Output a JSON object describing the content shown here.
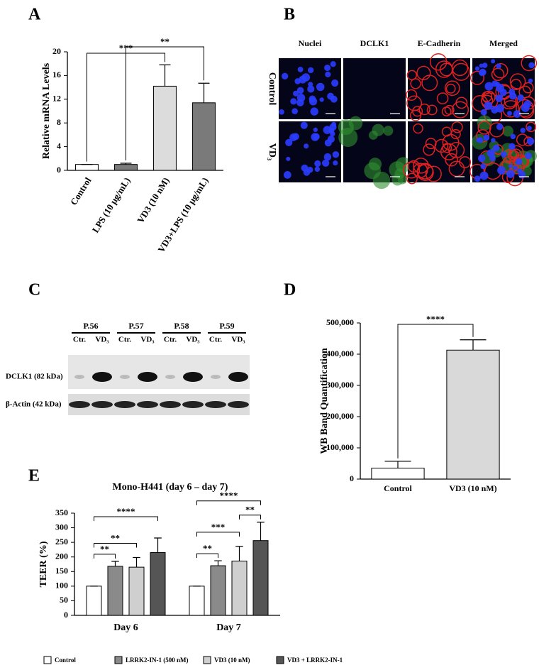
{
  "panel_labels": [
    "A",
    "B",
    "C",
    "D",
    "E"
  ],
  "microscopy": {
    "columns": [
      "Nuclei",
      "DCLK1",
      "E-Cadherin",
      "Merged"
    ],
    "rows": [
      "Control",
      "VD₃"
    ]
  },
  "blot": {
    "passages": [
      "P.56",
      "P.57",
      "P.58",
      "P.59"
    ],
    "lanes": [
      "Ctr.",
      "VD₃"
    ],
    "bands": [
      "DCLK1 (82 kDa)",
      "β-Actin (42 kDa)"
    ]
  },
  "chart_data": [
    {
      "type": "bar",
      "ylabel": "Relative mRNA Levels",
      "categories": [
        "Control",
        "LPS (10 μg/mL)",
        "VD3 (10 nM)",
        "VD3+LPS (10 μg/mL)"
      ],
      "values": [
        1,
        1,
        14.2,
        11.4
      ],
      "errors": [
        0,
        0.2,
        3.6,
        3.3
      ],
      "colors": [
        "#ffffff",
        "#7a7a7a",
        "#dcdcdc",
        "#7a7a7a"
      ],
      "ylim": [
        0,
        20
      ],
      "yticks": [
        0,
        4,
        8,
        12,
        16,
        20
      ],
      "significance": [
        {
          "from": 0,
          "to": 2,
          "label": "***"
        },
        {
          "from": 1,
          "to": 3,
          "label": "**"
        }
      ]
    },
    {
      "type": "bar",
      "ylabel": "WB Band Quantification",
      "categories": [
        "Control",
        "VD3 (10 nM)"
      ],
      "values": [
        35000,
        413000
      ],
      "errors": [
        22000,
        33000
      ],
      "colors": [
        "#ffffff",
        "#d9d9d9"
      ],
      "ylim": [
        0,
        500000
      ],
      "yticks": [
        0,
        {
          "value": 100000,
          "label": "100,000"
        },
        {
          "value": 200000,
          "label": "200,000"
        },
        {
          "value": 300000,
          "label": "300,000"
        },
        {
          "value": 400000,
          "label": "400,000"
        },
        {
          "value": 500000,
          "label": "500,000"
        }
      ],
      "significance": [
        {
          "from": 0,
          "to": 1,
          "label": "****"
        }
      ]
    },
    {
      "type": "grouped-bar",
      "title": "Mono-H441 (day 6 – day 7)",
      "ylabel": "TEER (%)",
      "categories": [
        "Day 6",
        "Day 7"
      ],
      "series": [
        {
          "name": "Control",
          "color": "#ffffff",
          "values": [
            100,
            100
          ],
          "errors": [
            0,
            0
          ]
        },
        {
          "name": "LRRK2-IN-1 (500 nM)",
          "color": "#8a8a8a",
          "values": [
            168,
            170
          ],
          "errors": [
            17,
            17
          ]
        },
        {
          "name": "VD3 (10 nM)",
          "color": "#cfcfcf",
          "values": [
            165,
            186
          ],
          "errors": [
            33,
            50
          ]
        },
        {
          "name": "VD3 + LRRK2-IN-1",
          "color": "#555555",
          "values": [
            215,
            256
          ],
          "errors": [
            50,
            63
          ]
        }
      ],
      "ylim": [
        0,
        350
      ],
      "yticks": [
        0,
        50,
        100,
        150,
        200,
        250,
        300,
        350
      ],
      "significance": [
        {
          "category": 0,
          "from": 0,
          "to": 1,
          "label": "**"
        },
        {
          "category": 0,
          "from": 0,
          "to": 2,
          "label": "**"
        },
        {
          "category": 0,
          "from": 0,
          "to": 3,
          "label": "****"
        },
        {
          "category": 1,
          "from": 0,
          "to": 1,
          "label": "**"
        },
        {
          "category": 1,
          "from": 0,
          "to": 2,
          "label": "***"
        },
        {
          "category": 1,
          "from": 2,
          "to": 3,
          "label": "**"
        },
        {
          "category": 1,
          "from": 0,
          "to": 3,
          "label": "****"
        }
      ]
    }
  ]
}
